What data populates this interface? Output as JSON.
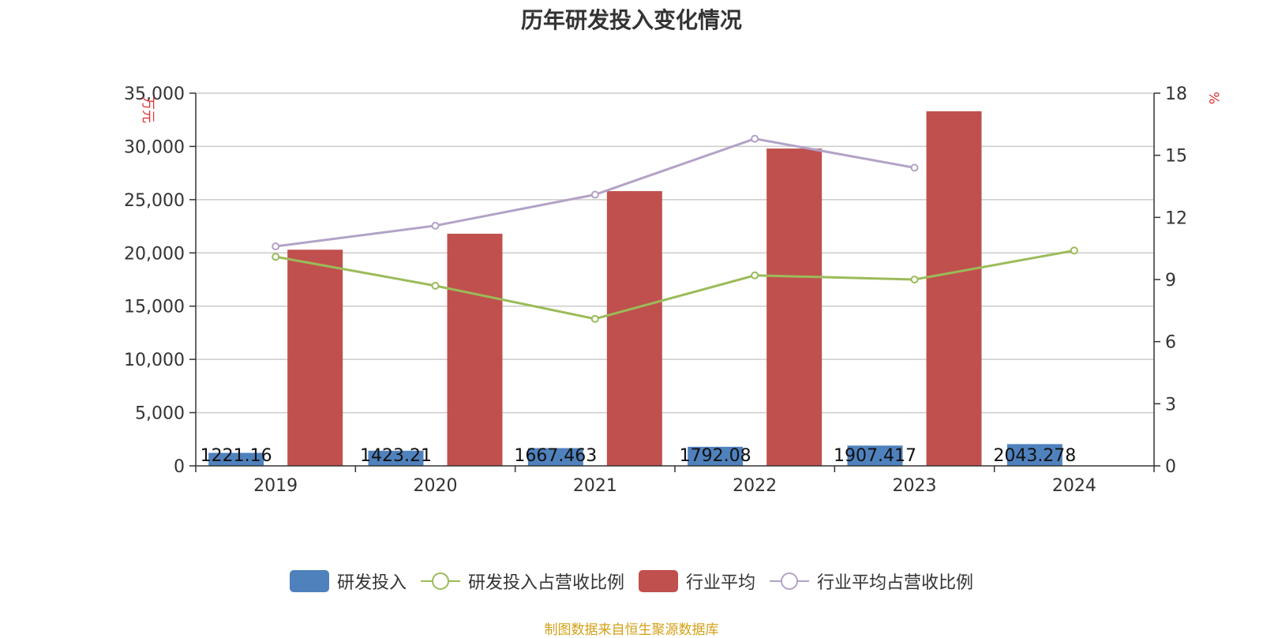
{
  "chart_data": {
    "type": "bar",
    "title": "历年研发投入变化情况",
    "categories": [
      "2019",
      "2020",
      "2021",
      "2022",
      "2023",
      "2024"
    ],
    "y_left": {
      "label": "万元",
      "ylim": [
        0,
        35000
      ],
      "ticks": [
        "0",
        "5,000",
        "10,000",
        "15,000",
        "20,000",
        "25,000",
        "30,000",
        "35,000"
      ],
      "tick_values": [
        0,
        5000,
        10000,
        15000,
        20000,
        25000,
        30000,
        35000
      ]
    },
    "y_right": {
      "label": "%",
      "ylim": [
        0,
        18
      ],
      "ticks": [
        "0",
        "3",
        "6",
        "9",
        "12",
        "15",
        "18"
      ],
      "tick_values": [
        0,
        3,
        6,
        9,
        12,
        15,
        18
      ]
    },
    "series": [
      {
        "name": "研发投入",
        "type": "bar",
        "axis": "left",
        "color": "#4f81bd",
        "values": [
          1221.16,
          1423.21,
          1667.463,
          1792.08,
          1907.417,
          2043.278
        ],
        "labels": [
          "1221.16",
          "1423.21",
          "1667.463",
          "1792.08",
          "1907.417",
          "2043.278"
        ]
      },
      {
        "name": "研发投入占营收比例",
        "type": "line",
        "axis": "right",
        "color": "#9bbb59",
        "values": [
          10.1,
          8.7,
          7.1,
          9.2,
          9.0,
          10.4
        ]
      },
      {
        "name": "行业平均",
        "type": "bar",
        "axis": "left",
        "color": "#c0504d",
        "values": [
          20300,
          21800,
          25800,
          29800,
          33300,
          null
        ]
      },
      {
        "name": "行业平均占营收比例",
        "type": "line",
        "axis": "right",
        "color": "#b3a2c7",
        "values": [
          10.6,
          11.6,
          13.1,
          15.8,
          14.4,
          null
        ]
      }
    ],
    "grid": true,
    "legend_position": "bottom"
  },
  "source_note": "制图数据来自恒生聚源数据库"
}
